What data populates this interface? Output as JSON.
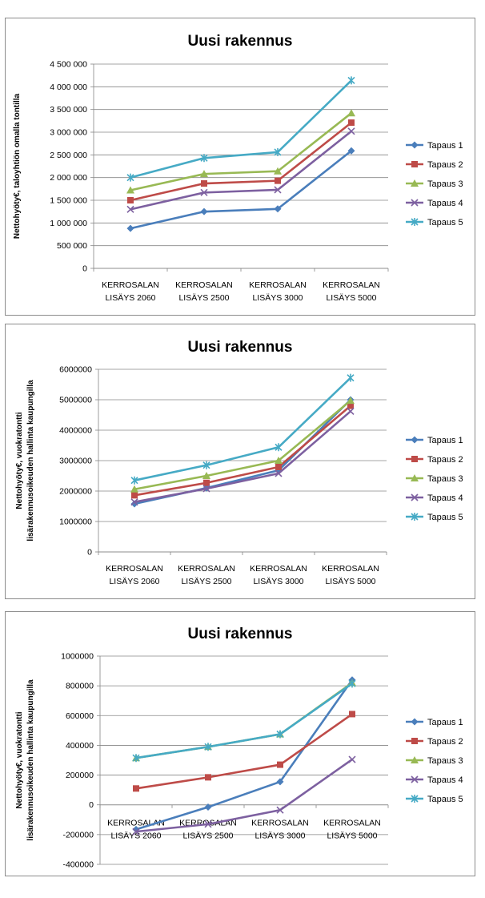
{
  "chart_data": [
    {
      "type": "line",
      "title": "Uusi rakennus",
      "ylabel": [
        "Nettohyöty€, taloyhtiön omalla tontilla"
      ],
      "categories": [
        [
          "KERROSALAN",
          "LISÄYS 2060"
        ],
        [
          "KERROSALAN",
          "LISÄYS 2500"
        ],
        [
          "KERROSALAN",
          "LISÄYS 3000"
        ],
        [
          "KERROSALAN",
          "LISÄYS 5000"
        ]
      ],
      "ylim": [
        0,
        4500000
      ],
      "yticks": [
        0,
        500000,
        1000000,
        1500000,
        2000000,
        2500000,
        3000000,
        3500000,
        4000000,
        4500000
      ],
      "ytick_labels": [
        "0",
        "500 000",
        "1 000 000",
        "1 500 000",
        "2 000 000",
        "2 500 000",
        "3 000 000",
        "3 500 000",
        "4 000 000",
        "4 500 000"
      ],
      "grid": true,
      "legend_position": "right",
      "series": [
        {
          "name": "Tapaus 1",
          "color": "#4a7ebb",
          "marker": "diamond",
          "values": [
            880000,
            1250000,
            1310000,
            2590000
          ]
        },
        {
          "name": "Tapaus 2",
          "color": "#be4b48",
          "marker": "square",
          "values": [
            1500000,
            1870000,
            1930000,
            3210000
          ]
        },
        {
          "name": "Tapaus 3",
          "color": "#98b954",
          "marker": "triangle",
          "values": [
            1720000,
            2080000,
            2140000,
            3420000
          ]
        },
        {
          "name": "Tapaus 4",
          "color": "#7d60a0",
          "marker": "x",
          "values": [
            1300000,
            1670000,
            1730000,
            3020000
          ]
        },
        {
          "name": "Tapaus 5",
          "color": "#46aac5",
          "marker": "star",
          "values": [
            2000000,
            2430000,
            2560000,
            4140000
          ]
        }
      ]
    },
    {
      "type": "line",
      "title": "Uusi rakennus",
      "ylabel": [
        "Nettohyöty€, vuokratontti",
        "lisärakennusoikeuden hallinta kaupungilla"
      ],
      "categories": [
        [
          "KERROSALAN",
          "LISÄYS 2060"
        ],
        [
          "KERROSALAN",
          "LISÄYS 2500"
        ],
        [
          "KERROSALAN",
          "LISÄYS 3000"
        ],
        [
          "KERROSALAN",
          "LISÄYS 5000"
        ]
      ],
      "ylim": [
        0,
        6000000
      ],
      "yticks": [
        0,
        1000000,
        2000000,
        3000000,
        4000000,
        5000000,
        6000000
      ],
      "ytick_labels": [
        "0",
        "1000000",
        "2000000",
        "3000000",
        "4000000",
        "5000000",
        "6000000"
      ],
      "grid": true,
      "legend_position": "right",
      "series": [
        {
          "name": "Tapaus 1",
          "color": "#4a7ebb",
          "marker": "diamond",
          "values": [
            1580000,
            2100000,
            2680000,
            5000000
          ]
        },
        {
          "name": "Tapaus 2",
          "color": "#be4b48",
          "marker": "square",
          "values": [
            1860000,
            2270000,
            2790000,
            4800000
          ]
        },
        {
          "name": "Tapaus 3",
          "color": "#98b954",
          "marker": "triangle",
          "values": [
            2060000,
            2500000,
            3000000,
            4970000
          ]
        },
        {
          "name": "Tapaus 4",
          "color": "#7d60a0",
          "marker": "x",
          "values": [
            1640000,
            2080000,
            2580000,
            4620000
          ]
        },
        {
          "name": "Tapaus 5",
          "color": "#46aac5",
          "marker": "star",
          "values": [
            2350000,
            2850000,
            3440000,
            5720000
          ]
        }
      ]
    },
    {
      "type": "line",
      "title": "Uusi rakennus",
      "ylabel": [
        "Nettohyöty€, vuokratontti",
        "lisärakennusoikeuden hallinta kaupungilla"
      ],
      "categories": [
        [
          "KERROSALAN",
          "LISÄYS 2060"
        ],
        [
          "KERROSALAN",
          "LISÄYS 2500"
        ],
        [
          "KERROSALAN",
          "LISÄYS 3000"
        ],
        [
          "KERROSALAN",
          "LISÄYS 5000"
        ]
      ],
      "ylim": [
        -400000,
        1000000
      ],
      "yticks": [
        -400000,
        -200000,
        0,
        200000,
        400000,
        600000,
        800000,
        1000000
      ],
      "ytick_labels": [
        "-400000",
        "-200000",
        "0",
        "200000",
        "400000",
        "600000",
        "800000",
        "1000000"
      ],
      "grid": true,
      "legend_position": "right",
      "series": [
        {
          "name": "Tapaus 1",
          "color": "#4a7ebb",
          "marker": "diamond",
          "values": [
            -165000,
            -15000,
            155000,
            840000
          ]
        },
        {
          "name": "Tapaus 2",
          "color": "#be4b48",
          "marker": "square",
          "values": [
            110000,
            185000,
            270000,
            610000
          ]
        },
        {
          "name": "Tapaus 3",
          "color": "#98b954",
          "marker": "triangle",
          "values": [
            315000,
            390000,
            475000,
            820000
          ]
        },
        {
          "name": "Tapaus 4",
          "color": "#7d60a0",
          "marker": "x",
          "values": [
            -180000,
            -130000,
            -35000,
            305000
          ]
        },
        {
          "name": "Tapaus 5",
          "color": "#46aac5",
          "marker": "star",
          "values": [
            315000,
            390000,
            475000,
            815000
          ]
        }
      ]
    }
  ]
}
